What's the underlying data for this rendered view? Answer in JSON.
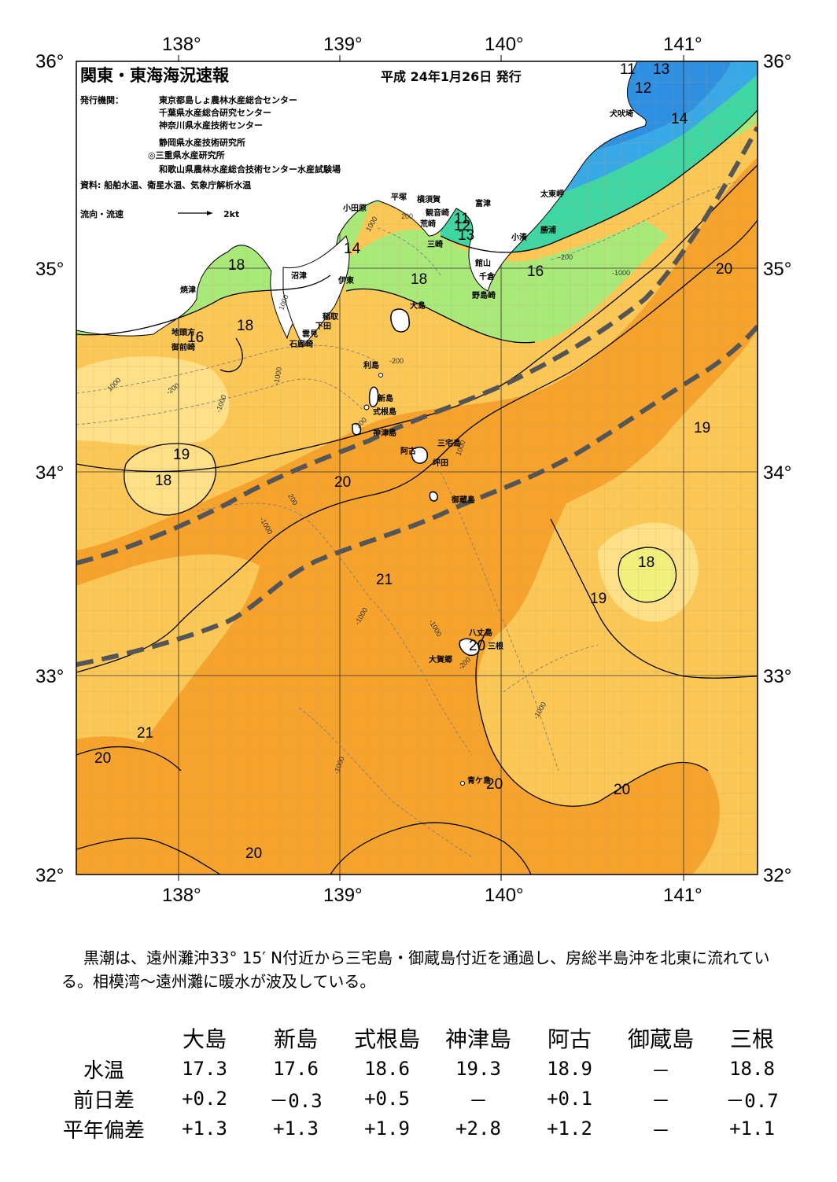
{
  "header": {
    "title": "関東・東海海況速報",
    "issued": "平成 24年1月26日 発行",
    "publisher_label": "発行機関：",
    "publishers": [
      "東京都島しょ農林水産総合センター",
      "千葉県水産総合研究センター",
      "神奈川県水産技術センター",
      "静岡県水産技術研究所",
      "◎三重県水産研究所",
      "和歌山県農林水産総合技術センター水産試験場"
    ],
    "sources": "資料: 船舶水温、衛星水温、気象庁解析水温",
    "legend_label": "流向・流速",
    "legend_scale": "2kt"
  },
  "axes": {
    "lon_labels": [
      "138°",
      "139°",
      "140°",
      "141°"
    ],
    "lat_labels": [
      "36°",
      "35°",
      "34°",
      "33°",
      "32°"
    ]
  },
  "isotherm_labels": [
    "11",
    "13",
    "12",
    "14",
    "11",
    "12",
    "13",
    "14",
    "16",
    "18",
    "18",
    "18",
    "16",
    "20",
    "19",
    "18",
    "20",
    "19",
    "18",
    "21",
    "19",
    "20",
    "21",
    "20",
    "20",
    "20",
    "20"
  ],
  "depth_labels": [
    "1000",
    "200",
    "-200",
    "-1000",
    "1000",
    "-200",
    "-1000",
    "1000",
    "-200",
    "-1000",
    "200",
    "1000",
    "-1000",
    "-1000",
    "-1000",
    "-1000",
    "-200",
    "-1000",
    "200"
  ],
  "places": [
    "犬吠埼",
    "太東岬",
    "勝浦",
    "小湊",
    "富津",
    "館山",
    "千倉",
    "野島崎",
    "横須賀",
    "観音崎",
    "平塚",
    "荒崎",
    "三崎",
    "小田原",
    "沼津",
    "伊東",
    "稲取",
    "下田",
    "雲見",
    "石廊崎",
    "焼津",
    "地頭方",
    "御前崎",
    "大島",
    "利島",
    "新島",
    "式根島",
    "神津島",
    "三宅島",
    "阿古",
    "坪田",
    "御蔵島",
    "八丈島",
    "三根",
    "大賀郷",
    "青ケ島"
  ],
  "colors": {
    "water_warm": "#f6a32e",
    "water_mid": "#fbc757",
    "water_cool": "#fde088",
    "water_cold": "#a9e97a",
    "water_colder": "#3fd6a3",
    "water_coldest": "#38a9e6",
    "land": "#ffffff",
    "kuroshio_axis": "#555555"
  },
  "summary": "黒潮は、遠州灘沖33° 15′ N付近から三宅島・御蔵島付近を通過し、房総半島沖を北東に流れている。相模湾～遠州灘に暖水が波及している。",
  "table": {
    "columns": [
      "大島",
      "新島",
      "式根島",
      "神津島",
      "阿古",
      "御蔵島",
      "三根"
    ],
    "rows": [
      {
        "label": "水温",
        "values": [
          "17.3",
          "17.6",
          "18.6",
          "19.3",
          "18.9",
          "－",
          "18.8"
        ]
      },
      {
        "label": "前日差",
        "values": [
          "+0.2",
          "－0.3",
          "+0.5",
          "－",
          "+0.1",
          "－",
          "－0.7"
        ]
      },
      {
        "label": "平年偏差",
        "values": [
          "+1.3",
          "+1.3",
          "+1.9",
          "+2.8",
          "+1.2",
          "－",
          "+1.1"
        ]
      }
    ]
  }
}
